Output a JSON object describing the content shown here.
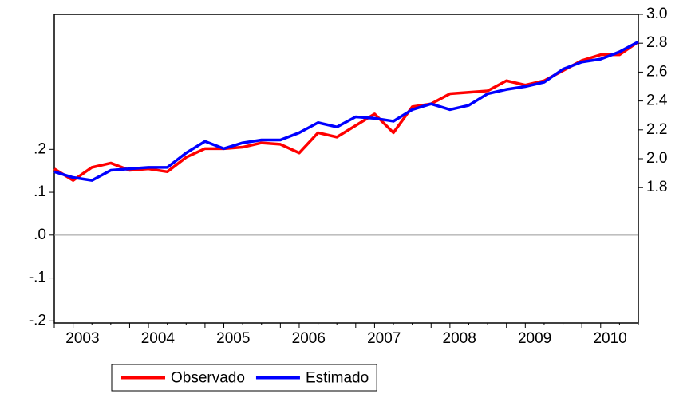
{
  "chart_data": {
    "type": "line",
    "categories": [
      null,
      "2003",
      null,
      null,
      null,
      "2004",
      null,
      null,
      null,
      "2005",
      null,
      null,
      null,
      "2006",
      null,
      null,
      null,
      "2007",
      null,
      null,
      null,
      "2008",
      null,
      null,
      null,
      "2009",
      null,
      null,
      null,
      "2010",
      null,
      null
    ],
    "series": [
      {
        "name": "Observado",
        "color": "#ff0000",
        "axis": "y2",
        "values": [
          1.93,
          1.85,
          1.94,
          1.97,
          1.92,
          1.93,
          1.91,
          2.01,
          2.07,
          2.07,
          2.08,
          2.11,
          2.1,
          2.04,
          2.18,
          2.15,
          2.23,
          2.31,
          2.18,
          2.36,
          2.38,
          2.45,
          2.46,
          2.47,
          2.54,
          2.51,
          2.54,
          2.61,
          2.68,
          2.72,
          2.72,
          2.81
        ]
      },
      {
        "name": "Estimado",
        "color": "#0000ff",
        "axis": "y2",
        "values": [
          1.91,
          1.87,
          1.85,
          1.92,
          1.93,
          1.94,
          1.94,
          2.04,
          2.12,
          2.07,
          2.11,
          2.13,
          2.13,
          2.18,
          2.25,
          2.22,
          2.29,
          2.28,
          2.26,
          2.34,
          2.38,
          2.34,
          2.37,
          2.45,
          2.48,
          2.5,
          2.53,
          2.62,
          2.67,
          2.69,
          2.74,
          2.81
        ]
      }
    ],
    "ylim": [
      -0.205,
      0.515
    ],
    "yticks": [
      {
        "value": -0.2,
        "label": "-.2"
      },
      {
        "value": -0.1,
        "label": "-.1"
      },
      {
        "value": 0,
        "label": ".0"
      },
      {
        "value": 0.1,
        "label": ".1"
      },
      {
        "value": 0.2,
        "label": ".2"
      }
    ],
    "y2lim": [
      0.862,
      3.0
    ],
    "y2ticks": [
      1.8,
      {
        "value": 2.0,
        "label": "2.0"
      },
      2.2,
      2.4,
      2.6,
      2.8,
      {
        "value": 3.0,
        "label": "3.0"
      }
    ],
    "zero_line": true,
    "legend": "bottom"
  }
}
